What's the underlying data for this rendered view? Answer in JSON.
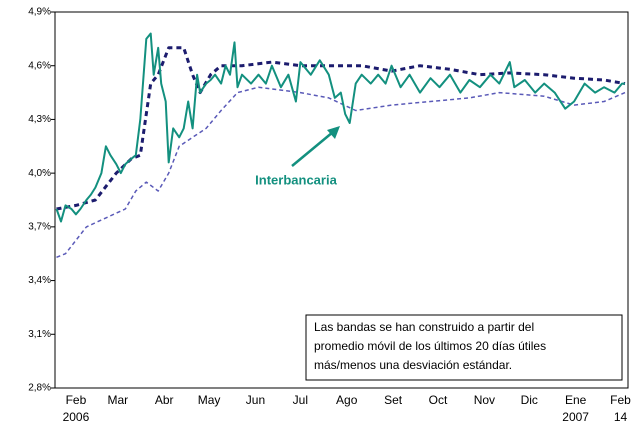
{
  "chart_data": {
    "type": "line",
    "xlim": [
      0,
      383
    ],
    "ylim": [
      2.8,
      4.9
    ],
    "yticks": [
      {
        "value": 2.8,
        "label": "2,8%"
      },
      {
        "value": 3.1,
        "label": "3,1%"
      },
      {
        "value": 3.4,
        "label": "3,4%"
      },
      {
        "value": 3.7,
        "label": "3,7%"
      },
      {
        "value": 4.0,
        "label": "4,0%"
      },
      {
        "value": 4.3,
        "label": "4,3%"
      },
      {
        "value": 4.6,
        "label": "4,6%"
      },
      {
        "value": 4.9,
        "label": "4,9%"
      }
    ],
    "xticks": [
      {
        "value": 14,
        "label": "Feb"
      },
      {
        "value": 42,
        "label": "Mar"
      },
      {
        "value": 73,
        "label": "Abr"
      },
      {
        "value": 103,
        "label": "May"
      },
      {
        "value": 134,
        "label": "Jun"
      },
      {
        "value": 164,
        "label": "Jul"
      },
      {
        "value": 195,
        "label": "Ago"
      },
      {
        "value": 226,
        "label": "Set"
      },
      {
        "value": 256,
        "label": "Oct"
      },
      {
        "value": 287,
        "label": "Nov"
      },
      {
        "value": 317,
        "label": "Dic"
      },
      {
        "value": 348,
        "label": "Ene"
      },
      {
        "value": 378,
        "label": "Feb"
      }
    ],
    "xticks_secondary": [
      {
        "value": 14,
        "label": "2006"
      },
      {
        "value": 348,
        "label": "2007"
      },
      {
        "value": 378,
        "label": "14"
      }
    ],
    "grid": false,
    "annotations": [
      "Interbancaria",
      "Las bandas se han construido a partir del",
      "promedio móvil de los últimos 20 días útiles",
      "más/menos una desviación estándar."
    ],
    "series": [
      {
        "name": "Interbancaria",
        "color": "#13907f",
        "style": "solid",
        "x": [
          1,
          4,
          7,
          11,
          14,
          17,
          21,
          24,
          27,
          31,
          34,
          37,
          41,
          44,
          47,
          51,
          54,
          57,
          61,
          64,
          66,
          69,
          71,
          74,
          76,
          79,
          83,
          86,
          89,
          92,
          95,
          97,
          101,
          104,
          107,
          111,
          114,
          117,
          120,
          122,
          125,
          131,
          136,
          141,
          145,
          151,
          156,
          161,
          164,
          171,
          177,
          183,
          187,
          191,
          194,
          197,
          201,
          205,
          211,
          216,
          221,
          225,
          231,
          237,
          244,
          251,
          257,
          264,
          271,
          277,
          284,
          291,
          297,
          304,
          307,
          314,
          321,
          327,
          334,
          341,
          347,
          354,
          361,
          367,
          374,
          379,
          381
        ],
        "values": [
          3.8,
          3.73,
          3.82,
          3.8,
          3.77,
          3.8,
          3.85,
          3.88,
          3.92,
          4.0,
          4.15,
          4.1,
          4.05,
          4.0,
          4.05,
          4.08,
          4.1,
          4.3,
          4.75,
          4.78,
          4.55,
          4.7,
          4.5,
          4.4,
          4.06,
          4.25,
          4.2,
          4.25,
          4.4,
          4.25,
          4.55,
          4.45,
          4.5,
          4.52,
          4.55,
          4.5,
          4.6,
          4.55,
          4.73,
          4.48,
          4.55,
          4.5,
          4.55,
          4.5,
          4.6,
          4.48,
          4.55,
          4.4,
          4.62,
          4.55,
          4.63,
          4.55,
          4.42,
          4.45,
          4.33,
          4.28,
          4.5,
          4.55,
          4.5,
          4.55,
          4.5,
          4.6,
          4.48,
          4.55,
          4.45,
          4.53,
          4.48,
          4.55,
          4.45,
          4.52,
          4.48,
          4.55,
          4.5,
          4.62,
          4.48,
          4.52,
          4.45,
          4.5,
          4.45,
          4.36,
          4.4,
          4.5,
          4.45,
          4.48,
          4.45,
          4.5,
          4.5
        ]
      },
      {
        "color": "#1c1c6e",
        "style": "dashed",
        "x": [
          1,
          14,
          27,
          41,
          51,
          57,
          64,
          69,
          76,
          86,
          92,
          97,
          104,
          111,
          125,
          145,
          164,
          183,
          205,
          225,
          244,
          264,
          284,
          304,
          327,
          347,
          367,
          381
        ],
        "values": [
          3.8,
          3.82,
          3.85,
          4.0,
          4.08,
          4.1,
          4.5,
          4.55,
          4.7,
          4.7,
          4.55,
          4.45,
          4.55,
          4.6,
          4.6,
          4.62,
          4.6,
          4.6,
          4.6,
          4.57,
          4.6,
          4.58,
          4.55,
          4.56,
          4.55,
          4.53,
          4.52,
          4.5
        ]
      },
      {
        "color": "#5a5ab8",
        "style": "dashed",
        "x": [
          1,
          7,
          21,
          34,
          47,
          54,
          61,
          69,
          76,
          83,
          92,
          101,
          111,
          122,
          136,
          164,
          183,
          201,
          225,
          251,
          277,
          297,
          327,
          347,
          367,
          381
        ],
        "values": [
          3.53,
          3.55,
          3.7,
          3.75,
          3.8,
          3.9,
          3.95,
          3.9,
          4.0,
          4.15,
          4.2,
          4.25,
          4.35,
          4.45,
          4.48,
          4.45,
          4.42,
          4.35,
          4.38,
          4.4,
          4.42,
          4.45,
          4.43,
          4.38,
          4.4,
          4.45
        ]
      }
    ]
  }
}
